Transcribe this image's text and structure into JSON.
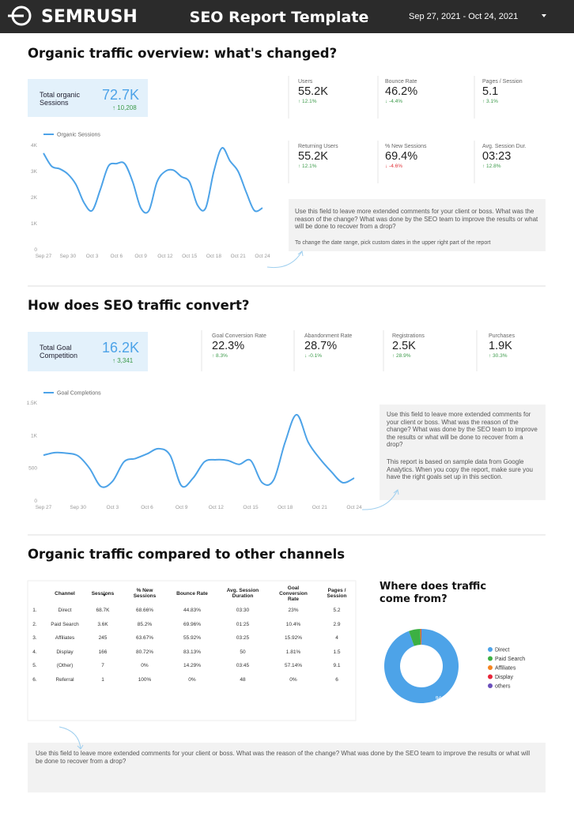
{
  "header": {
    "logo": "SEMRUSH",
    "title": "SEO Report Template",
    "date_range": "Sep 27, 2021 - Oct 24, 2021"
  },
  "sections": [
    {
      "title": "Organic traffic overview: what's changed?",
      "summary": {
        "label": "Total organic Sessions",
        "value": "72.7K",
        "change": "↑ 10,208"
      },
      "metrics": [
        {
          "label": "Users",
          "value": "55.2K",
          "change": "↑ 12.1%",
          "color": "#3c9a4a"
        },
        {
          "label": "Bounce Rate",
          "value": "46.2%",
          "change": "↓ -4.4%",
          "color": "#3c9a4a"
        },
        {
          "label": "Pages / Session",
          "value": "5.1",
          "change": "↑ 3.1%",
          "color": "#3c9a4a"
        },
        {
          "label": "Returning Users",
          "value": "55.2K",
          "change": "↑ 12.1%",
          "color": "#3c9a4a"
        },
        {
          "label": "% New Sessions",
          "value": "69.4%",
          "change": "↓ -4.6%",
          "color": "#e0343a"
        },
        {
          "label": "Avg. Session Dur.",
          "value": "03:23",
          "change": "↑ 12.8%",
          "color": "#3c9a4a"
        }
      ],
      "comment": [
        "Use this field to leave more extended comments for your client or boss. What was the reason of the change? What was done by the SEO team to improve the results or what will be done to recover from a drop?",
        "To change the date range, pick custom dates in the upper right part of the report"
      ]
    },
    {
      "title": "How does SEO traffic convert?",
      "summary": {
        "label": "Total Goal Competition",
        "value": "16.2K",
        "change": "↑ 3,341"
      },
      "metrics": [
        {
          "label": "Goal Conversion Rate",
          "value": "22.3%",
          "change": "↑ 8.3%",
          "color": "#3c9a4a"
        },
        {
          "label": "Abandonment Rate",
          "value": "28.7%",
          "change": "↓ -0.1%",
          "color": "#3c9a4a"
        },
        {
          "label": "Registrations",
          "value": "2.5K",
          "change": "↑ 28.9%",
          "color": "#3c9a4a"
        },
        {
          "label": "Purchases",
          "value": "1.9K",
          "change": "↑ 30.3%",
          "color": "#3c9a4a"
        }
      ],
      "comment": [
        "Use this field to leave more extended comments for your client or boss. What was the reason of the change? What was done by the SEO team to improve the results or what will be done to recover from a drop?",
        "This report is based on sample data from Google Analytics. When you copy the report, make sure you have the right goals set up in this section."
      ]
    },
    {
      "title": "Organic traffic compared to other channels",
      "table": {
        "columns": [
          "Channel",
          "Sessions",
          "% New Sessions",
          "Bounce Rate",
          "Avg. Session Duration",
          "Goal Conversion Rate",
          "Pages / Session"
        ],
        "rows": [
          {
            "rank": "1.",
            "cells": [
              "Direct",
              "68.7K",
              "68.66%",
              "44.83%",
              "03:30",
              "23%",
              "5.2"
            ]
          },
          {
            "rank": "2.",
            "cells": [
              "Paid Search",
              "3.6K",
              "85.2%",
              "69.96%",
              "01:25",
              "10.4%",
              "2.9"
            ]
          },
          {
            "rank": "3.",
            "cells": [
              "Affiliates",
              "245",
              "63.67%",
              "55.92%",
              "03:25",
              "15.92%",
              "4"
            ]
          },
          {
            "rank": "4.",
            "cells": [
              "Display",
              "166",
              "80.72%",
              "83.13%",
              "50",
              "1.81%",
              "1.5"
            ]
          },
          {
            "rank": "5.",
            "cells": [
              "(Other)",
              "7",
              "0%",
              "14.29%",
              "03:45",
              "57.14%",
              "9.1"
            ]
          },
          {
            "rank": "6.",
            "cells": [
              "Referral",
              "1",
              "100%",
              "0%",
              "48",
              "0%",
              "6"
            ]
          }
        ]
      },
      "comment": [
        "Use this field to leave more extended comments for your client or boss. What was the reason of the change? What was done by the SEO team to improve the results or what will be done to recover from a drop?"
      ]
    }
  ],
  "chart_data": [
    {
      "type": "line",
      "categories": [
        "Sep 27",
        null,
        null,
        "Sep 30",
        null,
        null,
        "Oct 3",
        null,
        null,
        "Oct 6",
        null,
        null,
        "Oct 9",
        null,
        null,
        "Oct 12",
        null,
        null,
        "Oct 15",
        null,
        null,
        "Oct 18",
        null,
        null,
        "Oct 21",
        null,
        null,
        "Oct 24"
      ],
      "series": [
        {
          "name": "Organic Sessions",
          "color": "#4da3e8",
          "values": [
            3700,
            3200,
            3100,
            2900,
            2500,
            1800,
            1500,
            2300,
            3200,
            3300,
            3300,
            2600,
            1600,
            1500,
            2600,
            3000,
            3050,
            2800,
            2600,
            1700,
            1600,
            3000,
            3900,
            3400,
            3000,
            2200,
            1500,
            1600
          ]
        }
      ],
      "ylim": [
        0,
        4000
      ],
      "yticks": [
        0,
        {
          "value": 1000,
          "label": "1K"
        },
        {
          "value": 2000,
          "label": "2K"
        },
        {
          "value": 3000,
          "label": "3K"
        },
        {
          "value": 4000,
          "label": "4K"
        }
      ],
      "grid": false
    },
    {
      "type": "line",
      "categories": [
        "Sep 27",
        null,
        null,
        "Sep 30",
        null,
        null,
        "Oct 3",
        null,
        null,
        "Oct 6",
        null,
        null,
        "Oct 9",
        null,
        null,
        "Oct 12",
        null,
        null,
        "Oct 15",
        null,
        null,
        "Oct 18",
        null,
        null,
        "Oct 21",
        null,
        null,
        "Oct 24"
      ],
      "series": [
        {
          "name": "Goal Completions",
          "color": "#4da3e8",
          "values": [
            700,
            740,
            730,
            690,
            500,
            220,
            300,
            600,
            650,
            720,
            800,
            700,
            230,
            350,
            600,
            630,
            620,
            560,
            620,
            280,
            320,
            900,
            1320,
            900,
            650,
            450,
            280,
            350
          ]
        }
      ],
      "ylim": [
        0,
        1500
      ],
      "yticks": [
        0,
        500,
        {
          "value": 1000,
          "label": "1K"
        },
        {
          "value": 1500,
          "label": "1.5K"
        }
      ],
      "grid": false
    },
    {
      "type": "pie",
      "title": "Where does traffic come from?",
      "donut": true,
      "categories": [
        "Direct",
        "Paid Search",
        "Affiliates",
        "Display",
        "others"
      ],
      "values": [
        94.5,
        5.0,
        0.3,
        0.2,
        0.0
      ],
      "value_labels": [
        "94.5%",
        null,
        null,
        null,
        null
      ],
      "colors": [
        "#4da3e8",
        "#3cb043",
        "#f5841f",
        "#e8253a",
        "#6b4fbb"
      ],
      "legend": "right"
    }
  ]
}
